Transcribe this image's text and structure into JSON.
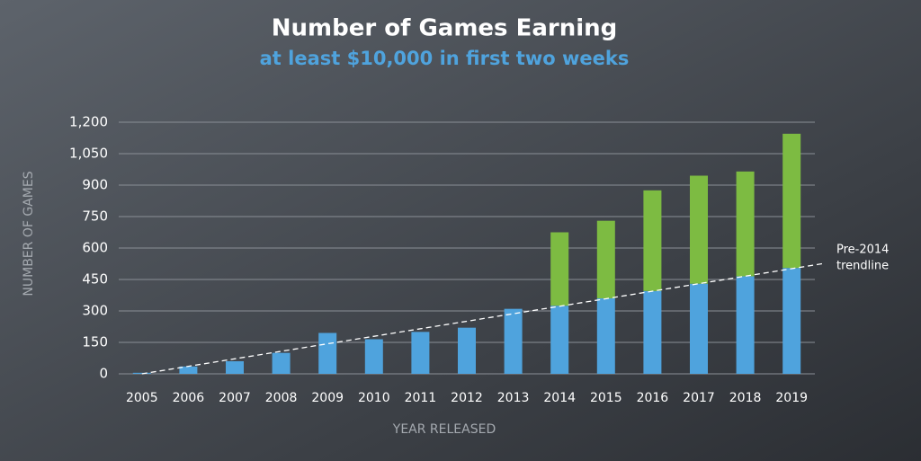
{
  "chart_data": {
    "type": "stacked-bar",
    "title": "Number of Games Earning",
    "subtitle": "at least $10,000 in first two weeks",
    "x_label": "YEAR RELEASED",
    "y_label": "NUMBER OF GAMES",
    "categories": [
      "2005",
      "2006",
      "2007",
      "2008",
      "2009",
      "2010",
      "2011",
      "2012",
      "2013",
      "2014",
      "2015",
      "2016",
      "2017",
      "2018",
      "2019"
    ],
    "series": [
      {
        "color": "#4fa3dd",
        "values": [
          5,
          35,
          60,
          100,
          195,
          165,
          200,
          220,
          310,
          325,
          360,
          395,
          430,
          465,
          505
        ]
      },
      {
        "color": "#7dbb42",
        "values": [
          null,
          null,
          null,
          null,
          null,
          null,
          null,
          null,
          null,
          350,
          370,
          480,
          515,
          500,
          640
        ]
      }
    ],
    "ylim": [
      0,
      1200
    ],
    "yticks": [
      0,
      150,
      300,
      450,
      600,
      750,
      900,
      {
        "value": 1050,
        "label": "1,050"
      },
      {
        "value": 1200,
        "label": "1,200"
      }
    ],
    "grid": true,
    "trendline": {
      "label_lines": [
        "Pre-2014",
        "trendline"
      ],
      "start": 0,
      "end": 525
    }
  }
}
